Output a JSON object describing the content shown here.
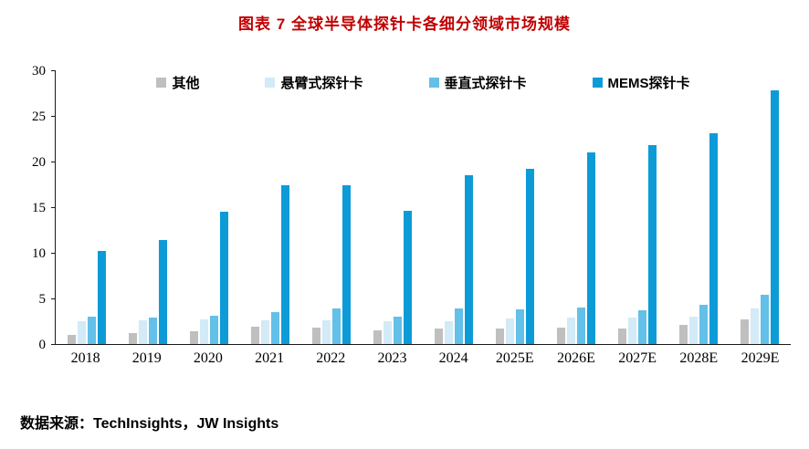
{
  "title": "图表 7 全球半导体探针卡各细分领域市场规模",
  "source": "数据来源：TechInsights，JW Insights",
  "chart_data": {
    "type": "bar",
    "title": "图表 7 全球半导体探针卡各细分领域市场规模",
    "categories": [
      "2018",
      "2019",
      "2020",
      "2021",
      "2022",
      "2023",
      "2024",
      "2025E",
      "2026E",
      "2027E",
      "2028E",
      "2029E"
    ],
    "series": [
      {
        "name": "其他",
        "color": "#bfbfbf",
        "values": [
          1.0,
          1.2,
          1.4,
          1.9,
          1.8,
          1.5,
          1.7,
          1.7,
          1.8,
          1.7,
          2.1,
          2.7
        ]
      },
      {
        "name": "悬臂式探针卡",
        "color": "#d3eaf7",
        "values": [
          2.5,
          2.6,
          2.7,
          2.6,
          2.6,
          2.5,
          2.5,
          2.8,
          2.9,
          2.9,
          3.0,
          3.9
        ]
      },
      {
        "name": "垂直式探针卡",
        "color": "#63c0e8",
        "values": [
          3.0,
          2.9,
          3.1,
          3.5,
          3.9,
          3.0,
          3.9,
          3.8,
          4.0,
          3.7,
          4.3,
          5.4
        ]
      },
      {
        "name": "MEMS探针卡",
        "color": "#0d9bd8",
        "values": [
          10.2,
          11.4,
          14.5,
          17.4,
          17.4,
          14.6,
          18.5,
          19.2,
          21.0,
          21.8,
          23.1,
          27.8
        ]
      }
    ],
    "xlabel": "",
    "ylabel": "",
    "ylim": [
      0,
      30
    ],
    "yticks": [
      0,
      5,
      10,
      15,
      20,
      25,
      30
    ],
    "grid": false,
    "legend_position": "top"
  }
}
